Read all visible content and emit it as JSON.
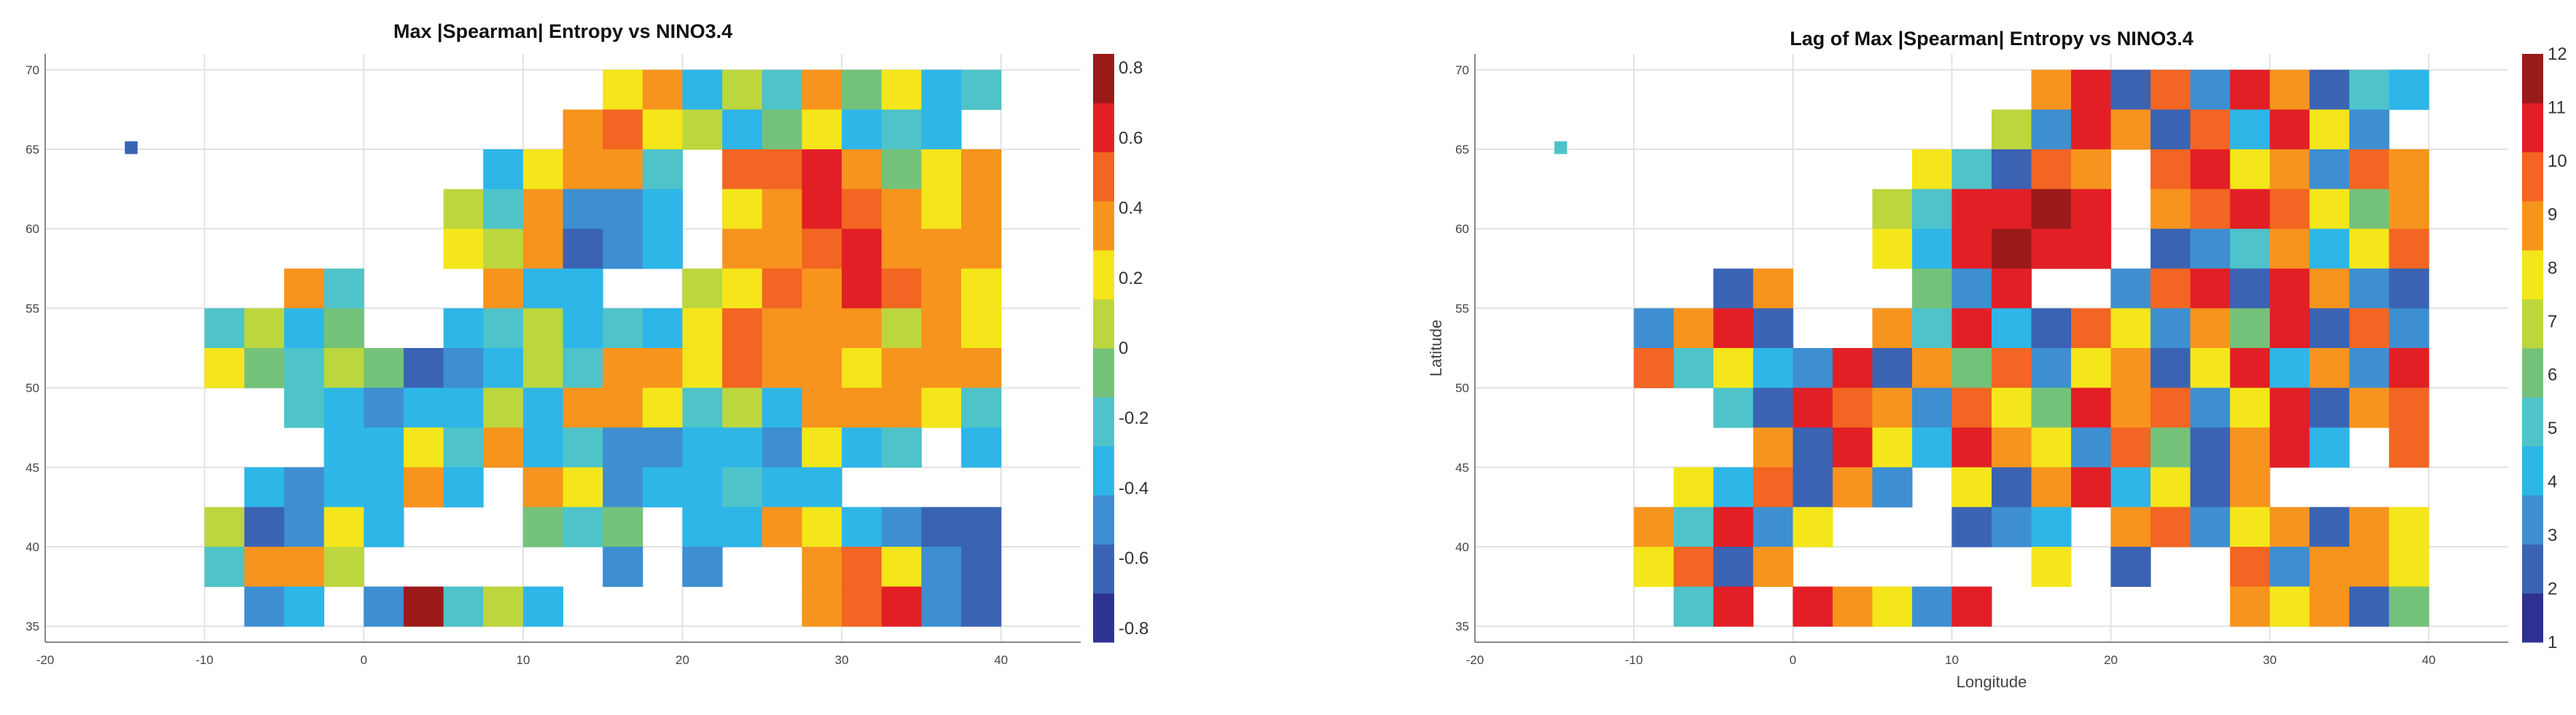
{
  "colormap": [
    "#2e3192",
    "#3b63b4",
    "#3d8fd1",
    "#2eb6e9",
    "#4ec3c9",
    "#74c27a",
    "#bcd63e",
    "#f4e61a",
    "#f7941d",
    "#f26522",
    "#e31f26",
    "#9b1a1a"
  ],
  "coastline_color": "#000000",
  "chart_data": [
    {
      "type": "heatmap",
      "title": "Max |Spearman| Entropy vs NINO3.4",
      "xlabel": "",
      "ylabel": "",
      "xlim": [
        -20,
        45
      ],
      "ylim": [
        34,
        71
      ],
      "x_ticks": [
        "-20",
        "-10",
        "0",
        "10",
        "20",
        "30",
        "40"
      ],
      "y_ticks": [
        "35",
        "40",
        "45",
        "50",
        "55",
        "60",
        "65",
        "70"
      ],
      "grid": true,
      "colorbar": {
        "range": [
          -0.84,
          0.84
        ],
        "ticks": [
          "-0.8",
          "-0.6",
          "-0.4",
          "-0.2",
          "0",
          "0.2",
          "0.4",
          "0.6",
          "0.8"
        ],
        "placement": "right"
      },
      "lon": [
        -10,
        -7.5,
        -5,
        -2.5,
        0,
        2.5,
        5,
        7.5,
        10,
        12.5,
        15,
        17.5,
        20,
        22.5,
        25,
        27.5,
        30,
        32.5,
        35,
        37.5
      ],
      "lat": [
        70,
        67.5,
        65,
        62.5,
        60,
        57.5,
        55,
        52.5,
        50,
        47.5,
        45,
        42.5,
        40,
        37.5
      ],
      "values": [
        [
          null,
          null,
          null,
          null,
          null,
          null,
          null,
          null,
          null,
          null,
          0.2,
          0.4,
          -0.3,
          0.1,
          -0.2,
          0.3,
          -0.1,
          0.2,
          -0.3,
          -0.2
        ],
        [
          null,
          null,
          null,
          null,
          null,
          null,
          null,
          null,
          null,
          0.3,
          0.5,
          0.2,
          0.1,
          -0.3,
          -0.1,
          0.2,
          -0.3,
          -0.2,
          -0.3,
          null
        ],
        [
          null,
          null,
          null,
          null,
          null,
          null,
          null,
          -0.3,
          0.2,
          0.4,
          0.3,
          -0.2,
          null,
          0.5,
          0.5,
          0.6,
          0.3,
          -0.1,
          0.2,
          0.3
        ],
        [
          null,
          null,
          null,
          null,
          null,
          null,
          0.1,
          -0.2,
          0.3,
          -0.5,
          -0.5,
          -0.4,
          null,
          0.2,
          0.4,
          0.6,
          0.5,
          0.3,
          0.2,
          0.3
        ],
        [
          null,
          null,
          null,
          null,
          null,
          null,
          0.2,
          0.1,
          0.3,
          -0.6,
          -0.5,
          -0.4,
          null,
          0.3,
          0.4,
          0.5,
          0.6,
          0.4,
          0.3,
          0.4
        ],
        [
          null,
          null,
          0.3,
          -0.2,
          null,
          null,
          null,
          0.4,
          -0.3,
          -0.4,
          null,
          null,
          0.1,
          0.2,
          0.5,
          0.4,
          0.6,
          0.5,
          0.3,
          0.2
        ],
        [
          -0.2,
          0.1,
          -0.3,
          -0.1,
          null,
          null,
          -0.4,
          -0.2,
          0.1,
          -0.3,
          -0.2,
          -0.3,
          0.2,
          0.5,
          0.4,
          0.3,
          0.4,
          0.1,
          0.3,
          0.2
        ],
        [
          0.2,
          -0.1,
          -0.2,
          0.1,
          -0.1,
          -0.6,
          -0.5,
          -0.3,
          0.0,
          -0.2,
          0.3,
          0.4,
          0.2,
          0.5,
          0.4,
          0.3,
          0.2,
          0.4,
          0.3,
          0.4
        ],
        [
          null,
          null,
          -0.2,
          -0.4,
          -0.5,
          -0.4,
          -0.3,
          0.1,
          -0.4,
          0.3,
          0.4,
          0.2,
          -0.2,
          0.1,
          -0.3,
          0.3,
          0.4,
          0.3,
          0.2,
          -0.2
        ],
        [
          null,
          null,
          null,
          -0.3,
          -0.4,
          0.2,
          -0.2,
          0.3,
          -0.3,
          -0.2,
          -0.5,
          -0.5,
          -0.4,
          -0.3,
          -0.5,
          0.2,
          -0.3,
          -0.2,
          null,
          -0.4
        ],
        [
          null,
          -0.3,
          -0.5,
          -0.3,
          -0.4,
          0.3,
          -0.4,
          null,
          0.3,
          0.2,
          -0.5,
          -0.4,
          -0.3,
          -0.2,
          -0.4,
          -0.3,
          null,
          null,
          null,
          null
        ],
        [
          0.1,
          -0.6,
          -0.5,
          0.2,
          -0.3,
          null,
          null,
          null,
          -0.1,
          -0.2,
          -0.1,
          null,
          -0.4,
          -0.3,
          0.3,
          0.2,
          -0.4,
          -0.5,
          -0.6,
          -0.6
        ],
        [
          -0.2,
          0.3,
          0.4,
          0.1,
          null,
          null,
          null,
          null,
          null,
          null,
          -0.5,
          null,
          -0.5,
          null,
          null,
          0.4,
          0.5,
          0.2,
          -0.5,
          -0.6
        ],
        [
          null,
          -0.5,
          -0.4,
          null,
          -0.5,
          0.7,
          -0.2,
          0.1,
          -0.3,
          null,
          null,
          null,
          null,
          null,
          null,
          0.4,
          0.5,
          0.6,
          -0.5,
          -0.6
        ]
      ],
      "extra_cells": [
        {
          "lon": -15,
          "lat": 65.5,
          "value": -0.6
        }
      ]
    },
    {
      "type": "heatmap",
      "title": "Lag of Max |Spearman| Entropy vs NINO3.4",
      "xlabel": "Longitude",
      "ylabel": "Latitude",
      "xlim": [
        -20,
        45
      ],
      "ylim": [
        34,
        71
      ],
      "x_ticks": [
        "-20",
        "-10",
        "0",
        "10",
        "20",
        "30",
        "40"
      ],
      "y_ticks": [
        "35",
        "40",
        "45",
        "50",
        "55",
        "60",
        "65",
        "70"
      ],
      "grid": true,
      "colorbar": {
        "range": [
          1,
          12
        ],
        "ticks": [
          "1",
          "2",
          "3",
          "4",
          "5",
          "6",
          "7",
          "8",
          "9",
          "10",
          "11",
          "12"
        ],
        "placement": "right"
      },
      "lon": [
        -10,
        -7.5,
        -5,
        -2.5,
        0,
        2.5,
        5,
        7.5,
        10,
        12.5,
        15,
        17.5,
        20,
        22.5,
        25,
        27.5,
        30,
        32.5,
        35,
        37.5
      ],
      "lat": [
        70,
        67.5,
        65,
        62.5,
        60,
        57.5,
        55,
        52.5,
        50,
        47.5,
        45,
        42.5,
        40,
        37.5
      ],
      "values": [
        [
          null,
          null,
          null,
          null,
          null,
          null,
          null,
          null,
          null,
          null,
          9,
          11,
          2,
          10,
          3,
          11,
          9,
          2,
          5,
          4
        ],
        [
          null,
          null,
          null,
          null,
          null,
          null,
          null,
          null,
          null,
          7,
          3,
          11,
          9,
          2,
          10,
          4,
          11,
          8,
          3,
          null
        ],
        [
          null,
          null,
          null,
          null,
          null,
          null,
          null,
          8,
          5,
          2,
          10,
          9,
          null,
          10,
          11,
          8,
          9,
          3,
          10,
          9
        ],
        [
          null,
          null,
          null,
          null,
          null,
          null,
          7,
          5,
          11,
          11,
          12,
          11,
          null,
          9,
          10,
          11,
          10,
          8,
          6,
          9
        ],
        [
          null,
          null,
          null,
          null,
          null,
          null,
          8,
          4,
          11,
          12,
          11,
          11,
          null,
          2,
          3,
          5,
          9,
          4,
          8,
          10
        ],
        [
          null,
          null,
          2,
          9,
          null,
          null,
          null,
          6,
          3,
          11,
          null,
          null,
          3,
          10,
          11,
          2,
          11,
          9,
          3,
          2
        ],
        [
          3,
          9,
          11,
          2,
          null,
          null,
          9,
          5,
          11,
          4,
          2,
          10,
          8,
          3,
          9,
          6,
          11,
          2,
          10,
          3
        ],
        [
          10,
          5,
          8,
          4,
          3,
          11,
          2,
          9,
          6,
          10,
          3,
          8,
          9,
          2,
          8,
          11,
          4,
          9,
          3,
          11
        ],
        [
          null,
          null,
          5,
          2,
          11,
          10,
          9,
          3,
          10,
          8,
          6,
          11,
          9,
          10,
          3,
          8,
          11,
          2,
          9,
          10
        ],
        [
          null,
          null,
          null,
          9,
          2,
          11,
          8,
          4,
          11,
          9,
          8,
          3,
          10,
          6,
          2,
          9,
          11,
          4,
          null,
          10
        ],
        [
          null,
          8,
          4,
          10,
          2,
          9,
          3,
          null,
          8,
          2,
          9,
          11,
          4,
          8,
          2,
          9,
          null,
          null,
          null,
          null
        ],
        [
          9,
          5,
          11,
          3,
          8,
          null,
          null,
          null,
          2,
          3,
          4,
          null,
          9,
          10,
          3,
          8,
          9,
          2,
          9,
          8
        ],
        [
          8,
          10,
          2,
          9,
          null,
          null,
          null,
          null,
          null,
          null,
          8,
          null,
          2,
          null,
          null,
          10,
          3,
          9,
          9,
          8
        ],
        [
          null,
          5,
          11,
          null,
          11,
          9,
          8,
          3,
          11,
          null,
          null,
          null,
          null,
          null,
          null,
          9,
          8,
          9,
          2,
          6
        ]
      ],
      "extra_cells": [
        {
          "lon": -15,
          "lat": 65.5,
          "value": 5
        }
      ]
    }
  ]
}
